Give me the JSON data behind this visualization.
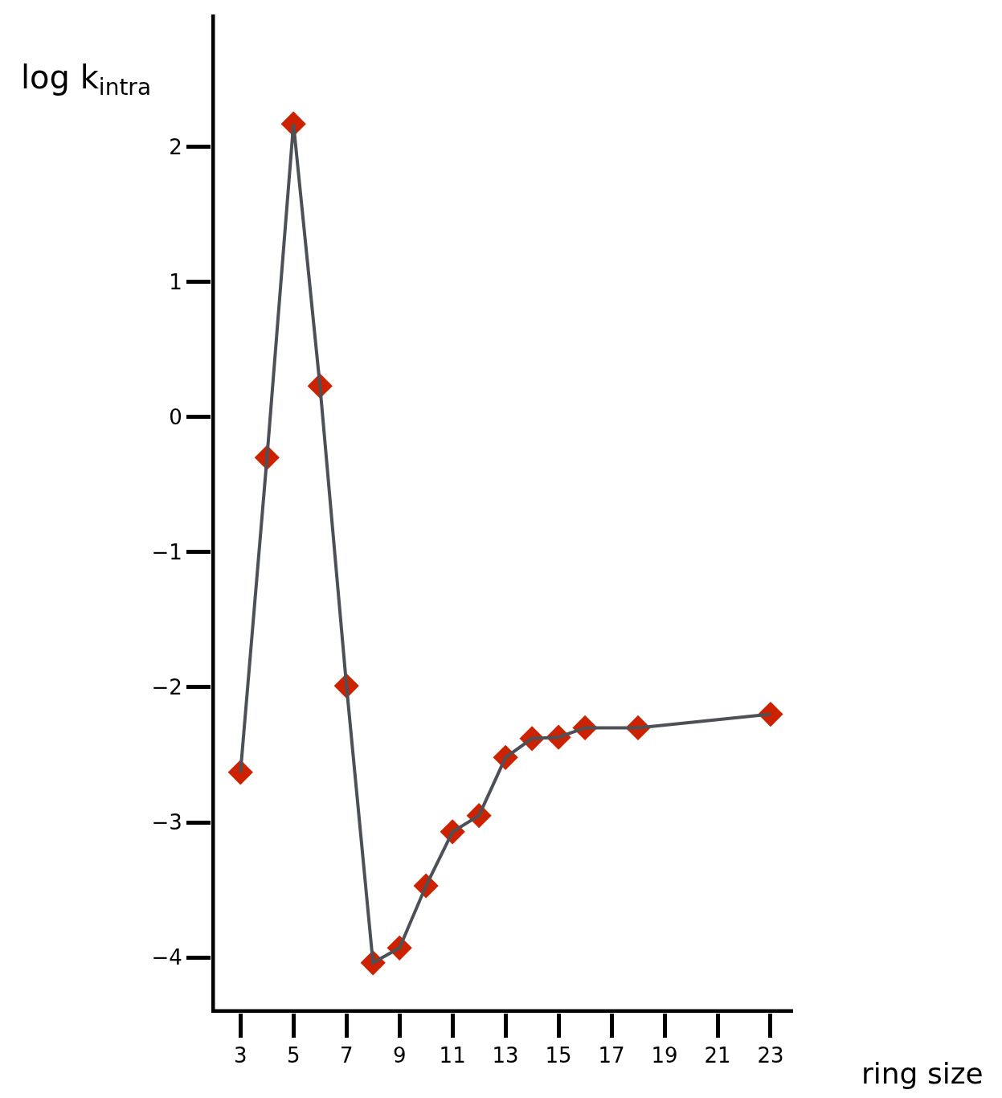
{
  "chart_data": {
    "type": "line",
    "xlabel": "ring size",
    "ylabel": "log k$_{intra}$",
    "x": [
      3,
      4,
      5,
      6,
      7,
      8,
      9,
      10,
      11,
      12,
      13,
      14,
      15,
      16,
      18,
      23
    ],
    "series": [
      {
        "type": "scatter",
        "marker": "diamond",
        "color": "#cc2200",
        "values": [
          -2.63,
          -0.3,
          2.17,
          0.23,
          -1.99,
          -4.04,
          -3.93,
          -3.47,
          -3.07,
          -2.95,
          -2.52,
          -2.38,
          -2.37,
          -2.3,
          -2.3,
          -2.2
        ]
      },
      {
        "color": "#4d5157",
        "values": [
          -2.63,
          -0.3,
          2.17,
          0.23,
          -1.99,
          -4.04,
          -3.93,
          -3.47,
          -3.07,
          -2.95,
          -2.52,
          -2.38,
          -2.37,
          -2.3,
          -2.3,
          -2.2
        ]
      }
    ],
    "xlim": [
      1.9,
      23.85
    ],
    "ylim": [
      -4.41,
      2.98
    ],
    "xticks": [
      3,
      5,
      7,
      9,
      11,
      13,
      15,
      17,
      19,
      21,
      23
    ],
    "yticks": [
      {
        "value": -4,
        "label": "−4"
      },
      {
        "value": -3,
        "label": "−3"
      },
      {
        "value": -2,
        "label": "−2"
      },
      {
        "value": -1,
        "label": "−1"
      },
      0,
      1,
      2
    ],
    "line_style": "solid"
  }
}
